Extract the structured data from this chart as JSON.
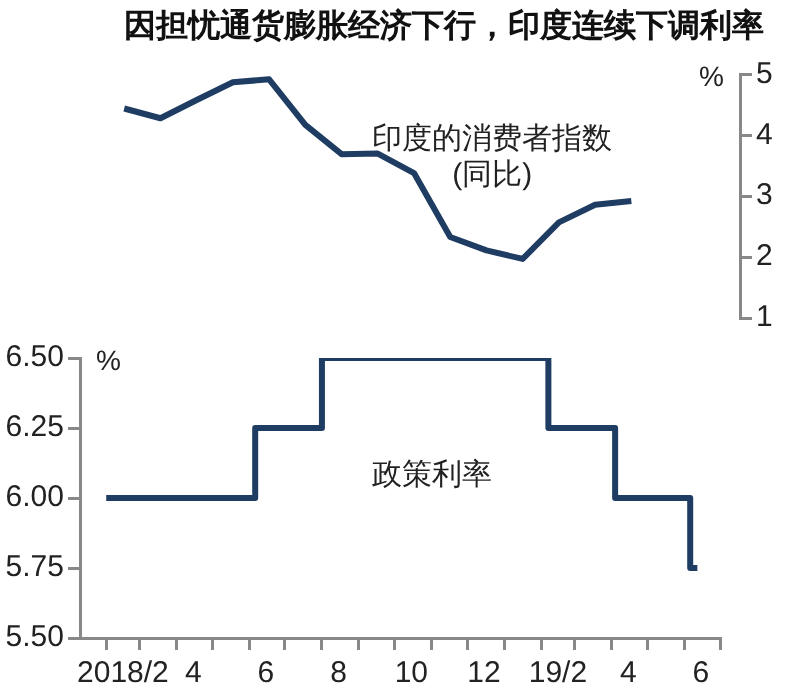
{
  "chart_data": [
    {
      "type": "line",
      "title": "因担忧通货膨胀经济下行，印度连续下调利率",
      "ylabel": "%",
      "categories": [
        null,
        null,
        null,
        null,
        null,
        null,
        null,
        null,
        null,
        null,
        null,
        null,
        null,
        null,
        null,
        null,
        null,
        null,
        null
      ],
      "ylim": [
        1,
        5
      ],
      "yticks": [
        1,
        2,
        3,
        4,
        5
      ],
      "tick_labels": "y",
      "grid": false,
      "legend": false,
      "marker": "none",
      "series": [
        {
          "name": "印度的消费者指数\n(同比)",
          "color": "#1f3d63",
          "values": [
            null,
            4.44,
            4.28,
            4.58,
            4.87,
            4.92,
            4.17,
            3.69,
            3.7,
            3.38,
            2.33,
            2.11,
            1.97,
            2.57,
            2.86,
            2.92,
            null,
            null,
            null
          ]
        }
      ]
    },
    {
      "type": "step",
      "ylabel": "%",
      "xlim": [
        "2018-01-10",
        "2019-07-01"
      ],
      "ylim": [
        5.5,
        6.5
      ],
      "yticks": [
        {
          "value": 5.5,
          "label": "5.50"
        },
        {
          "value": 5.75,
          "label": "5.75"
        },
        {
          "value": 6,
          "label": "6.00"
        },
        {
          "value": 6.25,
          "label": "6.25"
        },
        {
          "value": 6.5,
          "label": "6.50"
        }
      ],
      "xticks": [
        {
          "value": "2018-02-01",
          "label": null
        },
        {
          "value": "2018-02-15",
          "label": "2018/2"
        },
        {
          "value": "2018-03-01",
          "label": null
        },
        {
          "value": "2018-04-01",
          "label": null
        },
        {
          "value": "2018-04-15",
          "label": "4"
        },
        {
          "value": "2018-05-01",
          "label": null
        },
        {
          "value": "2018-06-01",
          "label": null
        },
        {
          "value": "2018-06-15",
          "label": "6"
        },
        {
          "value": "2018-07-01",
          "label": null
        },
        {
          "value": "2018-08-01",
          "label": null
        },
        {
          "value": "2018-08-15",
          "label": "8"
        },
        {
          "value": "2018-09-01",
          "label": null
        },
        {
          "value": "2018-10-01",
          "label": null
        },
        {
          "value": "2018-10-15",
          "label": "10"
        },
        {
          "value": "2018-11-01",
          "label": null
        },
        {
          "value": "2018-12-01",
          "label": null
        },
        {
          "value": "2018-12-15",
          "label": "12"
        },
        {
          "value": "2019-01-01",
          "label": null
        },
        {
          "value": "2019-02-01",
          "label": null
        },
        {
          "value": "2019-02-15",
          "label": "19/2"
        },
        {
          "value": "2019-03-01",
          "label": null
        },
        {
          "value": "2019-04-01",
          "label": null
        },
        {
          "value": "2019-04-15",
          "label": "4"
        },
        {
          "value": "2019-05-01",
          "label": null
        },
        {
          "value": "2019-06-01",
          "label": null
        },
        {
          "value": "2019-06-15",
          "label": "6"
        },
        {
          "value": "2019-07-01",
          "label": null
        }
      ],
      "grid": false,
      "legend": false,
      "marker": "none",
      "series": [
        {
          "name": "政策利率",
          "color": "#1f3d63",
          "x": [
            "2018-02-01",
            "2018-06-06",
            "2018-08-01",
            "2019-02-07",
            "2019-04-04",
            "2019-06-06",
            "2019-06-12"
          ],
          "values": [
            6,
            6.25,
            6.5,
            6.25,
            6,
            5.75,
            5.75
          ]
        }
      ]
    }
  ]
}
